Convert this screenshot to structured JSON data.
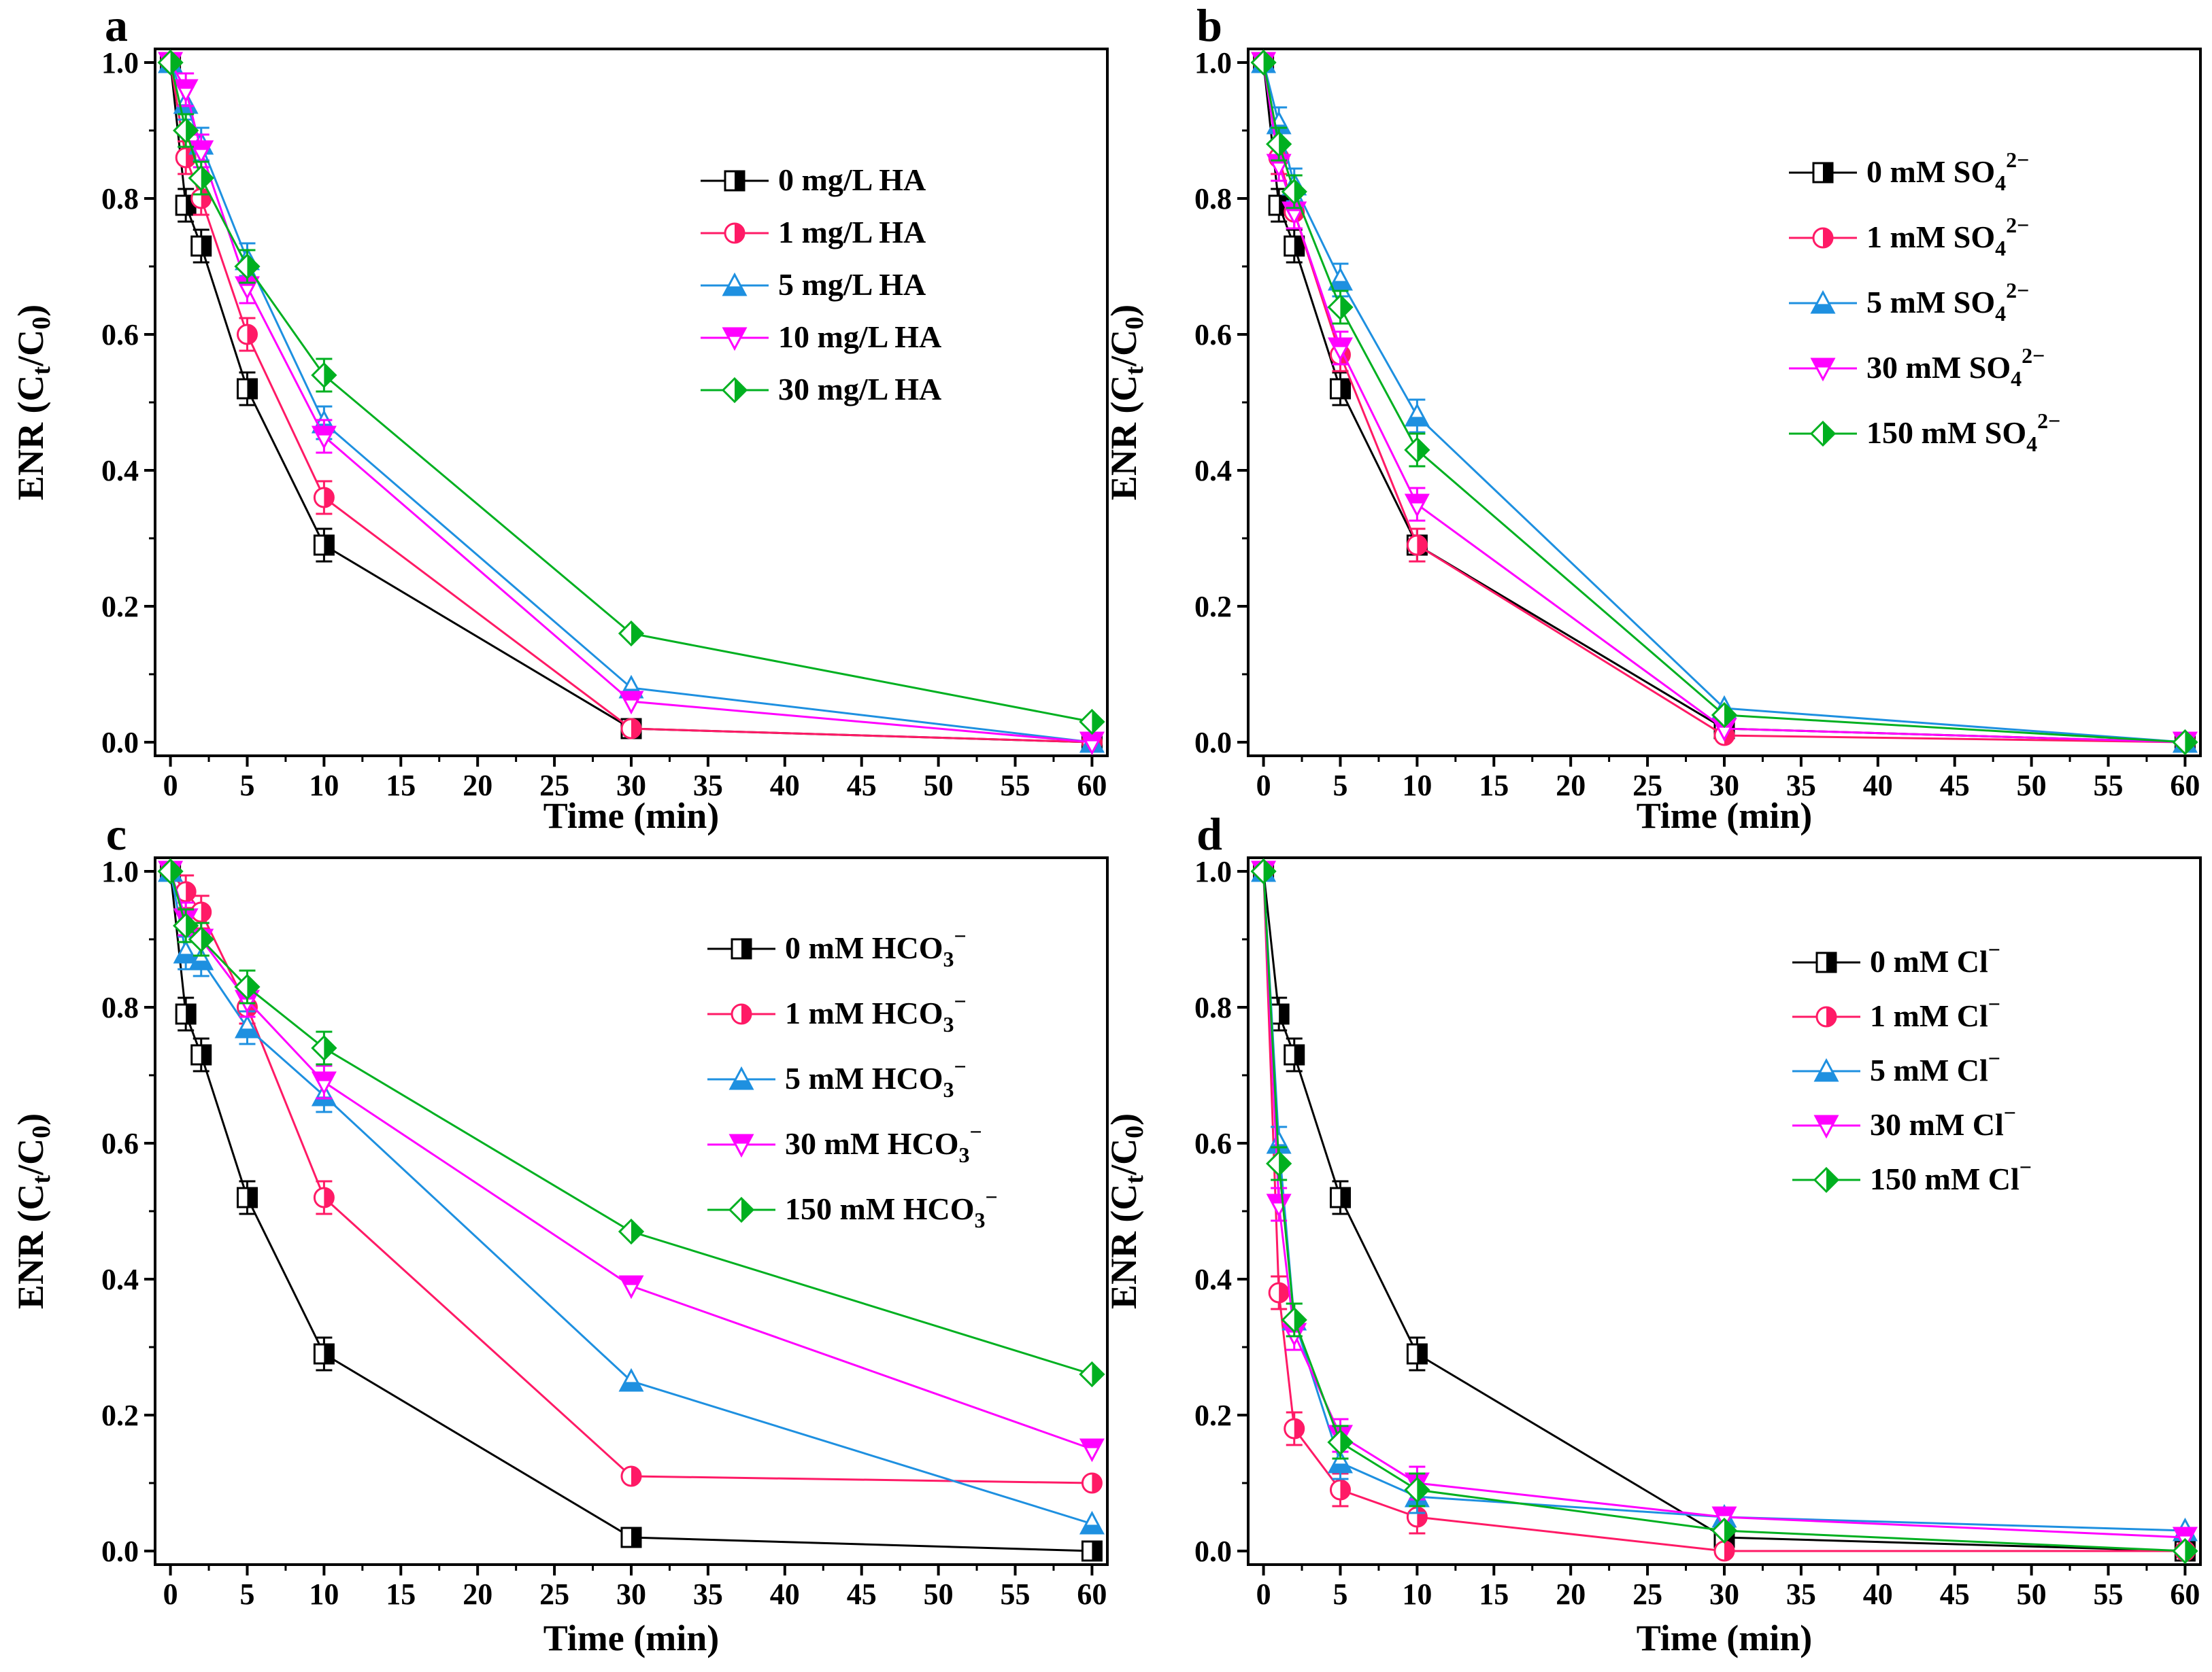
{
  "chart_data": [
    {
      "type": "line",
      "panel_label": "a",
      "xlabel": "Time (min)",
      "ylabel": "ENR (C_t/C_0)",
      "xlim": [
        -1,
        61
      ],
      "ylim": [
        -0.02,
        1.02
      ],
      "xticks": [
        0,
        5,
        10,
        15,
        20,
        25,
        30,
        35,
        40,
        45,
        50,
        55,
        60
      ],
      "yticks": [
        0.0,
        0.2,
        0.4,
        0.6,
        0.8,
        1.0
      ],
      "legend_position": "top-right",
      "x": [
        0,
        1,
        2,
        5,
        10,
        30,
        60
      ],
      "series": [
        {
          "name": "0 mg/L HA",
          "label_parts": [
            [
              "0 mg/L HA",
              ""
            ]
          ],
          "color": "#000000",
          "marker": "square",
          "values": [
            1.0,
            0.79,
            0.73,
            0.52,
            0.29,
            0.02,
            0.0
          ]
        },
        {
          "name": "1 mg/L HA",
          "label_parts": [
            [
              "1 mg/L HA",
              ""
            ]
          ],
          "color": "#ff1a66",
          "marker": "circle",
          "values": [
            1.0,
            0.86,
            0.8,
            0.6,
            0.36,
            0.02,
            0.0
          ]
        },
        {
          "name": "5 mg/L HA",
          "label_parts": [
            [
              "5 mg/L HA",
              ""
            ]
          ],
          "color": "#1e90e0",
          "marker": "triangle-up",
          "values": [
            1.0,
            0.94,
            0.88,
            0.71,
            0.47,
            0.08,
            0.0
          ]
        },
        {
          "name": "10 mg/L HA",
          "label_parts": [
            [
              "10 mg/L HA",
              ""
            ]
          ],
          "color": "#ff00ff",
          "marker": "triangle-down",
          "values": [
            1.0,
            0.96,
            0.87,
            0.67,
            0.45,
            0.06,
            0.0
          ]
        },
        {
          "name": "30 mg/L HA",
          "label_parts": [
            [
              "30 mg/L HA",
              ""
            ]
          ],
          "color": "#00b020",
          "marker": "diamond",
          "values": [
            1.0,
            0.9,
            0.83,
            0.7,
            0.54,
            0.16,
            0.03
          ]
        }
      ]
    },
    {
      "type": "line",
      "panel_label": "b",
      "xlabel": "Time (min)",
      "ylabel": "ENR (C_t/C_0)",
      "xlim": [
        -1,
        61
      ],
      "ylim": [
        -0.02,
        1.02
      ],
      "xticks": [
        0,
        5,
        10,
        15,
        20,
        25,
        30,
        35,
        40,
        45,
        50,
        55,
        60
      ],
      "yticks": [
        0.0,
        0.2,
        0.4,
        0.6,
        0.8,
        1.0
      ],
      "legend_position": "top-right",
      "x": [
        0,
        1,
        2,
        5,
        10,
        30,
        60
      ],
      "series": [
        {
          "name": "0 mM SO42−",
          "label_parts": [
            [
              "0 mM  SO",
              ""
            ],
            [
              "4",
              "sub"
            ],
            [
              "2−",
              "sup"
            ]
          ],
          "color": "#000000",
          "marker": "square",
          "values": [
            1.0,
            0.79,
            0.73,
            0.52,
            0.29,
            0.02,
            0.0
          ]
        },
        {
          "name": "1 mM SO42−",
          "label_parts": [
            [
              "1 mM SO",
              ""
            ],
            [
              "4",
              "sub"
            ],
            [
              "2−",
              "sup"
            ]
          ],
          "color": "#ff1a66",
          "marker": "circle",
          "values": [
            1.0,
            0.86,
            0.78,
            0.57,
            0.29,
            0.01,
            0.0
          ]
        },
        {
          "name": "5 mM SO42−",
          "label_parts": [
            [
              "5 mM SO",
              ""
            ],
            [
              "4",
              "sub"
            ],
            [
              "2−",
              "sup"
            ]
          ],
          "color": "#1e90e0",
          "marker": "triangle-up",
          "values": [
            1.0,
            0.91,
            0.82,
            0.68,
            0.48,
            0.05,
            0.0
          ]
        },
        {
          "name": "30 mM SO42−",
          "label_parts": [
            [
              "30 mM SO",
              ""
            ],
            [
              "4",
              "sub"
            ],
            [
              "2−",
              "sup"
            ]
          ],
          "color": "#ff00ff",
          "marker": "triangle-down",
          "values": [
            1.0,
            0.85,
            0.78,
            0.58,
            0.35,
            0.02,
            0.0
          ]
        },
        {
          "name": "150 mM SO42−",
          "label_parts": [
            [
              "150 mM SO",
              ""
            ],
            [
              "4",
              "sub"
            ],
            [
              "2−",
              "sup"
            ]
          ],
          "color": "#00b020",
          "marker": "diamond",
          "values": [
            1.0,
            0.88,
            0.81,
            0.64,
            0.43,
            0.04,
            0.0
          ]
        }
      ]
    },
    {
      "type": "line",
      "panel_label": "c",
      "xlabel": "Time (min)",
      "ylabel": "ENR (C_t/C_0)",
      "xlim": [
        -1,
        61
      ],
      "ylim": [
        -0.02,
        1.02
      ],
      "xticks": [
        0,
        5,
        10,
        15,
        20,
        25,
        30,
        35,
        40,
        45,
        50,
        55,
        60
      ],
      "yticks": [
        0.0,
        0.2,
        0.4,
        0.6,
        0.8,
        1.0
      ],
      "legend_position": "top-right",
      "x": [
        0,
        1,
        2,
        5,
        10,
        30,
        60
      ],
      "series": [
        {
          "name": "0 mM HCO3−",
          "label_parts": [
            [
              "0 mM HCO",
              ""
            ],
            [
              "3",
              "sub"
            ],
            [
              "−",
              "sup"
            ]
          ],
          "color": "#000000",
          "marker": "square",
          "values": [
            1.0,
            0.79,
            0.73,
            0.52,
            0.29,
            0.02,
            0.0
          ]
        },
        {
          "name": "1 mM HCO3−",
          "label_parts": [
            [
              "1 mM HCO",
              ""
            ],
            [
              "3",
              "sub"
            ],
            [
              "−",
              "sup"
            ]
          ],
          "color": "#ff1a66",
          "marker": "circle",
          "values": [
            1.0,
            0.97,
            0.94,
            0.8,
            0.52,
            0.11,
            0.1
          ]
        },
        {
          "name": "5 mM HCO3−",
          "label_parts": [
            [
              "5 mM HCO",
              ""
            ],
            [
              "3",
              "sub"
            ],
            [
              "−",
              "sup"
            ]
          ],
          "color": "#1e90e0",
          "marker": "triangle-up",
          "values": [
            1.0,
            0.88,
            0.87,
            0.77,
            0.67,
            0.25,
            0.04
          ]
        },
        {
          "name": "30 mM HCO3−",
          "label_parts": [
            [
              "30 mM HCO",
              ""
            ],
            [
              "3",
              "sub"
            ],
            [
              "−",
              "sup"
            ]
          ],
          "color": "#ff00ff",
          "marker": "triangle-down",
          "values": [
            1.0,
            0.93,
            0.9,
            0.81,
            0.69,
            0.39,
            0.15
          ]
        },
        {
          "name": "150 mM HCO3−",
          "label_parts": [
            [
              "150 mM HCO",
              ""
            ],
            [
              "3",
              "sub"
            ],
            [
              "−",
              "sup"
            ]
          ],
          "color": "#00b020",
          "marker": "diamond",
          "values": [
            1.0,
            0.92,
            0.9,
            0.83,
            0.74,
            0.47,
            0.26
          ]
        }
      ]
    },
    {
      "type": "line",
      "panel_label": "d",
      "xlabel": "Time (min)",
      "ylabel": "ENR (C_t/C_0)",
      "xlim": [
        -1,
        61
      ],
      "ylim": [
        -0.02,
        1.02
      ],
      "xticks": [
        0,
        5,
        10,
        15,
        20,
        25,
        30,
        35,
        40,
        45,
        50,
        55,
        60
      ],
      "yticks": [
        0.0,
        0.2,
        0.4,
        0.6,
        0.8,
        1.0
      ],
      "legend_position": "top-right",
      "x": [
        0,
        1,
        2,
        5,
        10,
        30,
        60
      ],
      "series": [
        {
          "name": "0 mM Cl−",
          "label_parts": [
            [
              "0 mM Cl",
              ""
            ],
            [
              "−",
              "sup"
            ]
          ],
          "color": "#000000",
          "marker": "square",
          "values": [
            1.0,
            0.79,
            0.73,
            0.52,
            0.29,
            0.02,
            0.0
          ]
        },
        {
          "name": "1 mM Cl−",
          "label_parts": [
            [
              "1 mM Cl",
              ""
            ],
            [
              "−",
              "sup"
            ]
          ],
          "color": "#ff1a66",
          "marker": "circle",
          "values": [
            1.0,
            0.38,
            0.18,
            0.09,
            0.05,
            0.0,
            0.0
          ]
        },
        {
          "name": "5 mM Cl−",
          "label_parts": [
            [
              "5 mM Cl",
              ""
            ],
            [
              "−",
              "sup"
            ]
          ],
          "color": "#1e90e0",
          "marker": "triangle-up",
          "values": [
            1.0,
            0.6,
            0.34,
            0.13,
            0.08,
            0.05,
            0.03
          ]
        },
        {
          "name": "30 mM Cl−",
          "label_parts": [
            [
              "30 mM Cl",
              ""
            ],
            [
              "−",
              "sup"
            ]
          ],
          "color": "#ff00ff",
          "marker": "triangle-down",
          "values": [
            1.0,
            0.51,
            0.32,
            0.17,
            0.1,
            0.05,
            0.02
          ]
        },
        {
          "name": "150 mM Cl−",
          "label_parts": [
            [
              "150 mM Cl",
              ""
            ],
            [
              "−",
              "sup"
            ]
          ],
          "color": "#00b020",
          "marker": "diamond",
          "values": [
            1.0,
            0.57,
            0.34,
            0.16,
            0.09,
            0.03,
            0.0
          ]
        }
      ]
    }
  ]
}
